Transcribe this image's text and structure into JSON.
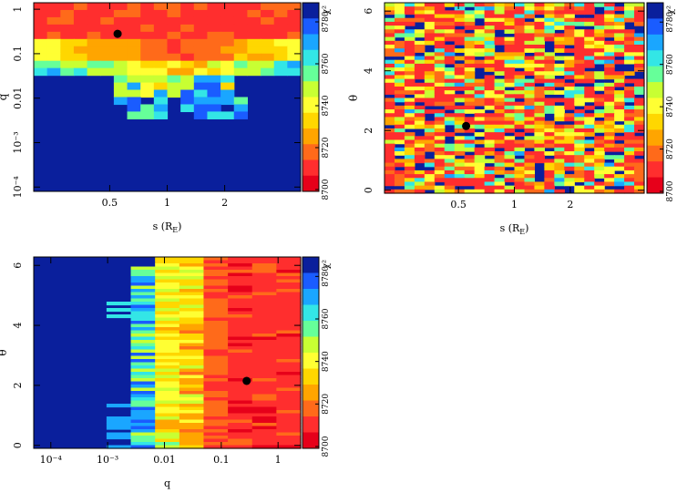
{
  "colorbar_label": "χ²",
  "colorbar_ticks": [
    "8700",
    "8720",
    "8740",
    "8760",
    "8780"
  ],
  "colormap": [
    "#e6001a",
    "#ff2e2e",
    "#ff6a1a",
    "#ffa500",
    "#ffd700",
    "#ffff33",
    "#c8ff33",
    "#66ff99",
    "#33e6e6",
    "#1aa6ff",
    "#1a5cff",
    "#0a1f9c"
  ],
  "best_fit_color": "#000000",
  "chart_data": [
    {
      "type": "heatmap",
      "panel": "top-left",
      "xlabel": "s (R",
      "xlabel_sub": "E",
      "xlabel_close": ")",
      "ylabel": "q",
      "x_scale": "log",
      "y_scale": "log",
      "xlim": [
        0.2,
        5.0
      ],
      "ylim": [
        8e-05,
        1.4
      ],
      "x_ticks": [
        {
          "label": "0.5",
          "value": 0.5
        },
        {
          "label": "1",
          "value": 1
        },
        {
          "label": "2",
          "value": 2
        }
      ],
      "y_ticks": [
        {
          "label": "1",
          "value": 1
        },
        {
          "label": "0.1",
          "value": 0.1
        },
        {
          "label": "0.01",
          "value": 0.01
        },
        {
          "label": "10⁻³",
          "value": 0.001
        },
        {
          "label": "10⁻⁴",
          "value": 0.0001
        }
      ],
      "best_fit": {
        "x": 0.55,
        "y": 0.28
      },
      "clim": [
        8700,
        8790
      ]
    },
    {
      "type": "heatmap",
      "panel": "top-right",
      "xlabel": "s (R",
      "xlabel_sub": "E",
      "xlabel_close": ")",
      "ylabel": "θ",
      "x_scale": "log",
      "y_scale": "linear",
      "xlim": [
        0.2,
        5.0
      ],
      "ylim": [
        -0.1,
        6.28
      ],
      "x_ticks": [
        {
          "label": "0.5",
          "value": 0.5
        },
        {
          "label": "1",
          "value": 1
        },
        {
          "label": "2",
          "value": 2
        }
      ],
      "y_ticks": [
        {
          "label": "6",
          "value": 6
        },
        {
          "label": "4",
          "value": 4
        },
        {
          "label": "2",
          "value": 2
        },
        {
          "label": "0",
          "value": 0
        }
      ],
      "best_fit": {
        "x": 0.55,
        "y": 2.15
      },
      "clim": [
        8700,
        8790
      ]
    },
    {
      "type": "heatmap",
      "panel": "bottom-left",
      "xlabel": "q",
      "xlabel_sub": "",
      "xlabel_close": "",
      "ylabel": "θ",
      "x_scale": "log",
      "y_scale": "linear",
      "xlim": [
        5e-05,
        2.5
      ],
      "ylim": [
        -0.1,
        6.28
      ],
      "x_ticks": [
        {
          "label": "10⁻⁴",
          "value": 0.0001
        },
        {
          "label": "10⁻³",
          "value": 0.001
        },
        {
          "label": "0.01",
          "value": 0.01
        },
        {
          "label": "0.1",
          "value": 0.1
        },
        {
          "label": "1",
          "value": 1
        }
      ],
      "y_ticks": [
        {
          "label": "6",
          "value": 6
        },
        {
          "label": "4",
          "value": 4
        },
        {
          "label": "2",
          "value": 2
        },
        {
          "label": "0",
          "value": 0
        }
      ],
      "best_fit": {
        "x": 0.28,
        "y": 2.15
      },
      "clim": [
        8700,
        8790
      ]
    }
  ]
}
